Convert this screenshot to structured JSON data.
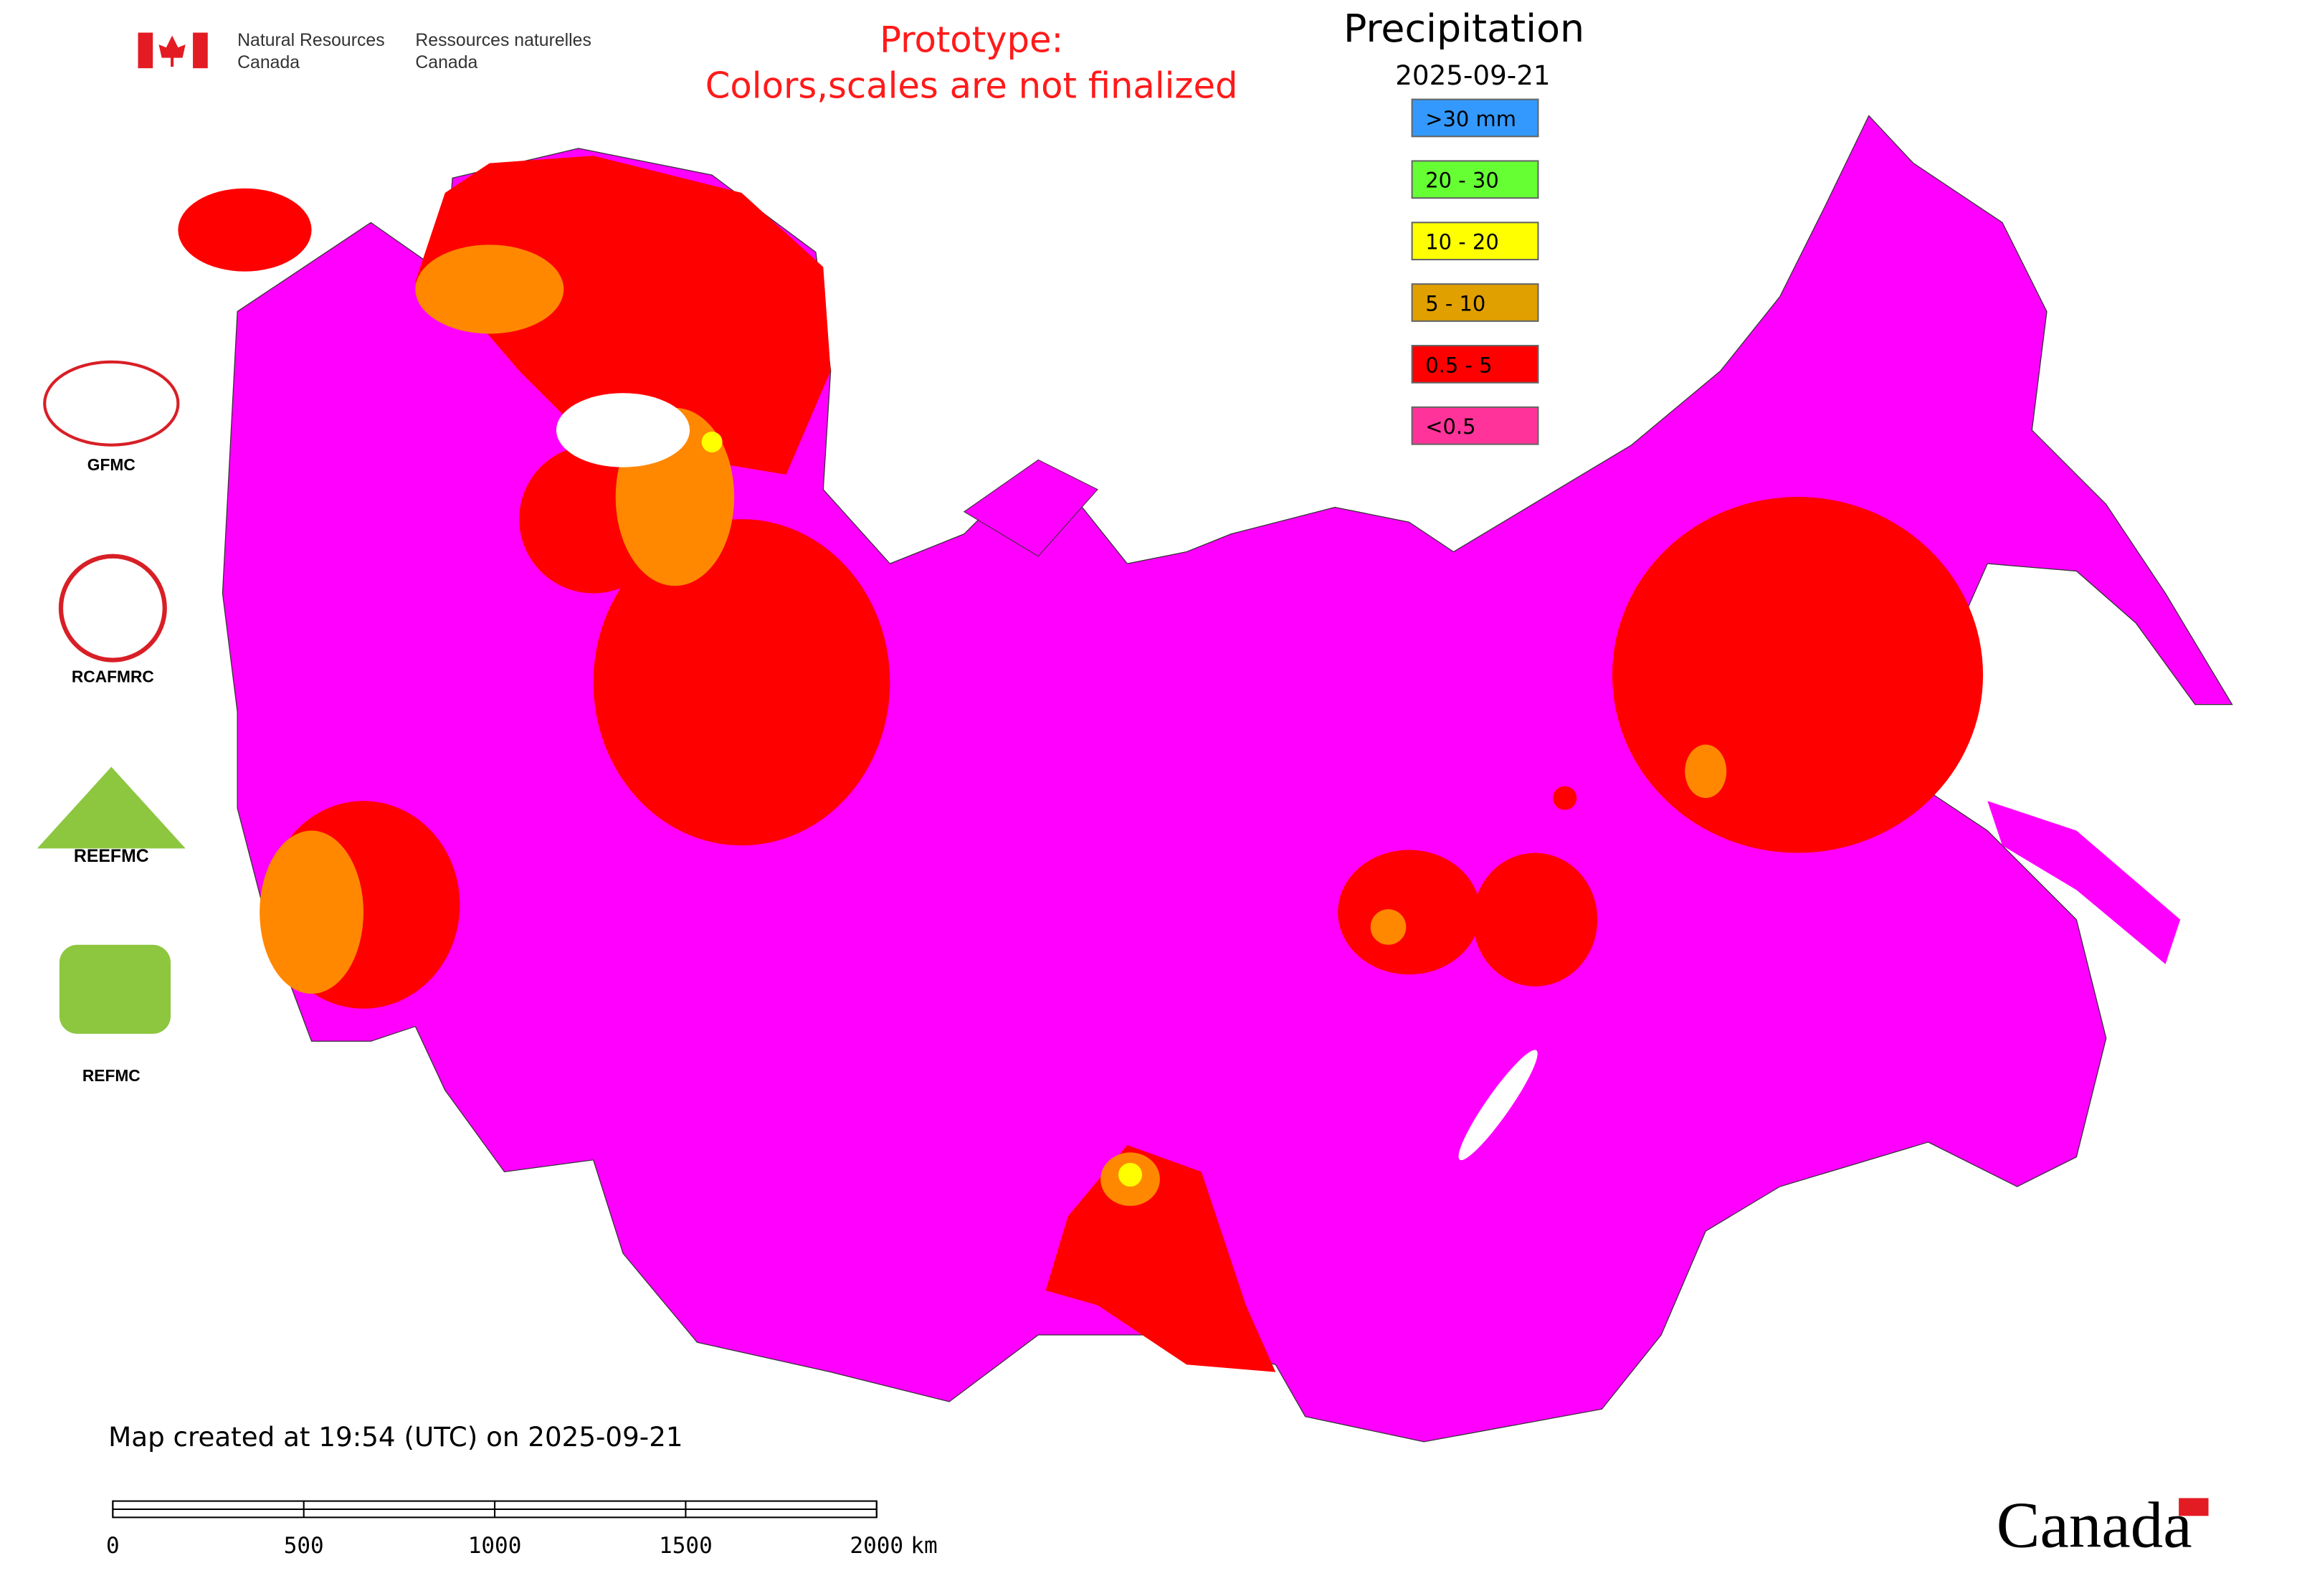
{
  "header": {
    "org_en": [
      "Natural Resources",
      "Canada"
    ],
    "org_fr": [
      "Ressources naturelles",
      "Canada"
    ],
    "notice": [
      "Prototype:",
      "Colors,scales are not finalized"
    ]
  },
  "legend": {
    "title": "Precipitation",
    "date": "2025-09-21",
    "items": [
      {
        "label": ">30 mm",
        "color": "#3399ff"
      },
      {
        "label": "20 - 30",
        "color": "#66ff33"
      },
      {
        "label": "10 - 20",
        "color": "#ffff00"
      },
      {
        "label": "5 - 10",
        "color": "#e0a000"
      },
      {
        "label": "0.5 - 5",
        "color": "#ff0000"
      },
      {
        "label": "<0.5",
        "color": "#ff3399"
      }
    ]
  },
  "logos": [
    {
      "label": "GFMC"
    },
    {
      "label": "RCAFMRC"
    },
    {
      "label": "REEFMC"
    },
    {
      "label": "REFMC"
    }
  ],
  "footer": {
    "created": "Map created at 19:54 (UTC) on 2025-09-21",
    "scale": {
      "ticks": [
        "0",
        "500",
        "1000",
        "1500",
        "2000"
      ],
      "unit": "km"
    },
    "wordmark": "Canada"
  }
}
